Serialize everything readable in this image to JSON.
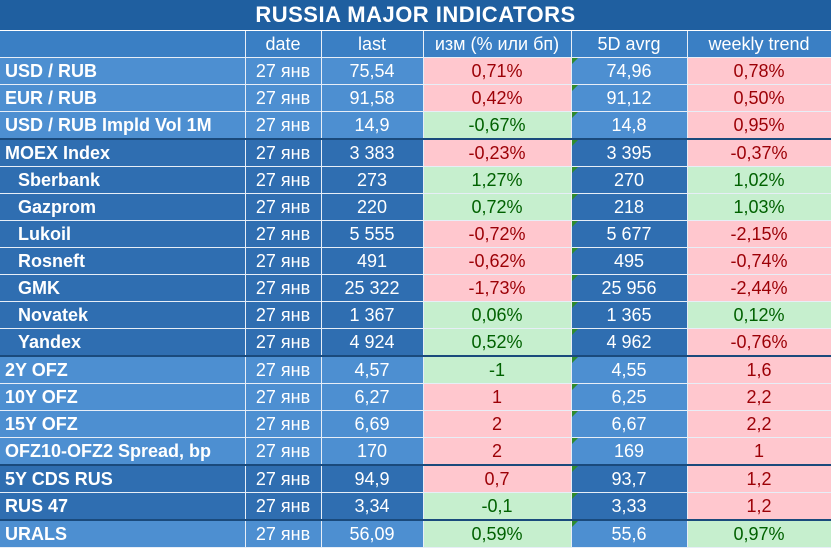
{
  "title": "RUSSIA   MAJOR   INDICATORS",
  "columns": [
    "",
    "date",
    "last",
    "изм (% или бп)",
    "5D avrg",
    "weekly trend"
  ],
  "rows": [
    {
      "name": "USD / RUB",
      "date": "27 янв",
      "last": "75,54",
      "chg": "0,71%",
      "avg": "74,96",
      "wk": "0,78%",
      "chg_dir": "neg",
      "wk_dir": "neg",
      "group": "light",
      "indent": false
    },
    {
      "name": "EUR / RUB",
      "date": "27 янв",
      "last": "91,58",
      "chg": "0,42%",
      "avg": "91,12",
      "wk": "0,50%",
      "chg_dir": "neg",
      "wk_dir": "neg",
      "group": "light",
      "indent": false
    },
    {
      "name": "USD / RUB Impld Vol 1M",
      "date": "27 янв",
      "last": "14,9",
      "chg": "-0,67%",
      "avg": "14,8",
      "wk": "0,95%",
      "chg_dir": "pos",
      "wk_dir": "neg",
      "group": "light",
      "indent": false
    },
    {
      "name": "MOEX Index",
      "date": "27 янв",
      "last": "3 383",
      "chg": "-0,23%",
      "avg": "3 395",
      "wk": "-0,37%",
      "chg_dir": "neg",
      "wk_dir": "neg",
      "group": "dark",
      "indent": false,
      "sep": true
    },
    {
      "name": "Sberbank",
      "date": "27 янв",
      "last": "273",
      "chg": "1,27%",
      "avg": "270",
      "wk": "1,02%",
      "chg_dir": "pos",
      "wk_dir": "pos",
      "group": "dark",
      "indent": true
    },
    {
      "name": "Gazprom",
      "date": "27 янв",
      "last": "220",
      "chg": "0,72%",
      "avg": "218",
      "wk": "1,03%",
      "chg_dir": "pos",
      "wk_dir": "pos",
      "group": "dark",
      "indent": true
    },
    {
      "name": "Lukoil",
      "date": "27 янв",
      "last": "5 555",
      "chg": "-0,72%",
      "avg": "5 677",
      "wk": "-2,15%",
      "chg_dir": "neg",
      "wk_dir": "neg",
      "group": "dark",
      "indent": true
    },
    {
      "name": "Rosneft",
      "date": "27 янв",
      "last": "491",
      "chg": "-0,62%",
      "avg": "495",
      "wk": "-0,74%",
      "chg_dir": "neg",
      "wk_dir": "neg",
      "group": "dark",
      "indent": true
    },
    {
      "name": "GMK",
      "date": "27 янв",
      "last": "25 322",
      "chg": "-1,73%",
      "avg": "25 956",
      "wk": "-2,44%",
      "chg_dir": "neg",
      "wk_dir": "neg",
      "group": "dark",
      "indent": true
    },
    {
      "name": "Novatek",
      "date": "27 янв",
      "last": "1 367",
      "chg": "0,06%",
      "avg": "1 365",
      "wk": "0,12%",
      "chg_dir": "pos",
      "wk_dir": "pos",
      "group": "dark",
      "indent": true
    },
    {
      "name": "Yandex",
      "date": "27 янв",
      "last": "4 924",
      "chg": "0,52%",
      "avg": "4 962",
      "wk": "-0,76%",
      "chg_dir": "pos",
      "wk_dir": "neg",
      "group": "dark",
      "indent": true
    },
    {
      "name": "2Y OFZ",
      "date": "27 янв",
      "last": "4,57",
      "chg": "-1",
      "avg": "4,55",
      "wk": "1,6",
      "chg_dir": "pos",
      "wk_dir": "neg",
      "group": "light",
      "indent": false,
      "sep": true
    },
    {
      "name": "10Y OFZ",
      "date": "27 янв",
      "last": "6,27",
      "chg": "1",
      "avg": "6,25",
      "wk": "2,2",
      "chg_dir": "neg",
      "wk_dir": "neg",
      "group": "light",
      "indent": false
    },
    {
      "name": "15Y OFZ",
      "date": "27 янв",
      "last": "6,69",
      "chg": "2",
      "avg": "6,67",
      "wk": "2,2",
      "chg_dir": "neg",
      "wk_dir": "neg",
      "group": "light",
      "indent": false
    },
    {
      "name": "OFZ10-OFZ2 Spread, bp",
      "date": "27 янв",
      "last": "170",
      "chg": "2",
      "avg": "169",
      "wk": "1",
      "chg_dir": "neg",
      "wk_dir": "neg",
      "group": "light",
      "indent": false
    },
    {
      "name": "5Y CDS RUS",
      "date": "27 янв",
      "last": "94,9",
      "chg": "0,7",
      "avg": "93,7",
      "wk": "1,2",
      "chg_dir": "neg",
      "wk_dir": "neg",
      "group": "dark",
      "indent": false,
      "sep": true
    },
    {
      "name": "RUS 47",
      "date": "27 янв",
      "last": "3,34",
      "chg": "-0,1",
      "avg": "3,33",
      "wk": "1,2",
      "chg_dir": "pos",
      "wk_dir": "neg",
      "group": "dark",
      "indent": false
    },
    {
      "name": "URALS",
      "date": "27 янв",
      "last": "56,09",
      "chg": "0,59%",
      "avg": "55,6",
      "wk": "0,97%",
      "chg_dir": "pos",
      "wk_dir": "pos",
      "group": "light",
      "indent": false,
      "sep": true
    }
  ]
}
